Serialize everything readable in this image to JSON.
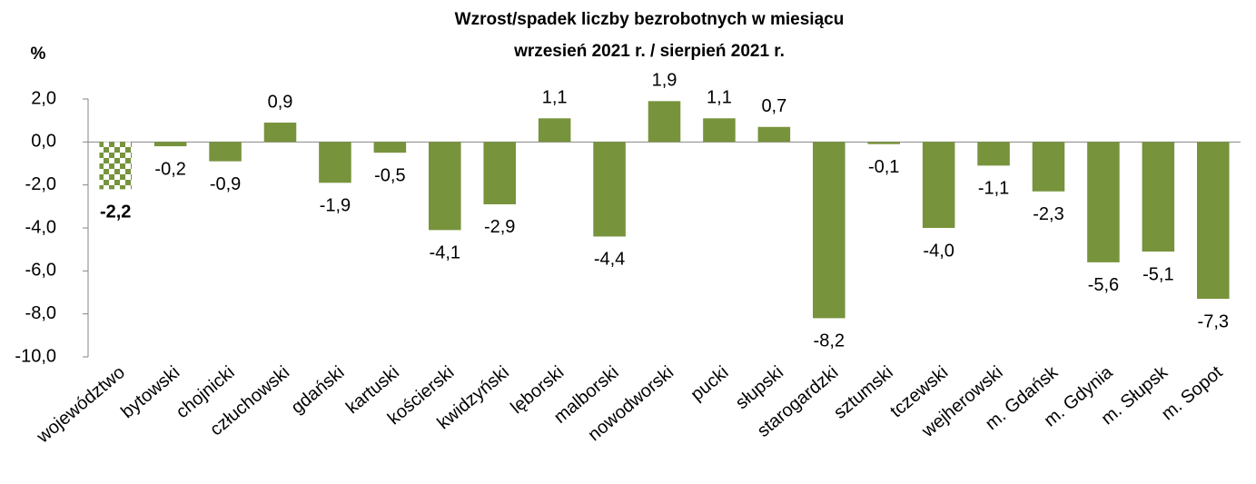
{
  "chart_data": {
    "type": "bar",
    "title": "Wzrost/spadek liczby bezrobotnych w miesiącu",
    "subtitle": "wrzesień 2021 r. / sierpień 2021 r.",
    "y_label": "%",
    "categories": [
      "województwo",
      "bytowski",
      "chojnicki",
      "człuchowski",
      "gdański",
      "kartuski",
      "kościerski",
      "kwidzyński",
      "lęborski",
      "malborski",
      "nowodworski",
      "pucki",
      "słupski",
      "starogardzki",
      "sztumski",
      "tczewski",
      "wejherowski",
      "m. Gdańsk",
      "m. Gdynia",
      "m. Słupsk",
      "m. Sopot"
    ],
    "values": [
      -2.2,
      -0.2,
      -0.9,
      0.9,
      -1.9,
      -0.5,
      -4.1,
      -2.9,
      1.1,
      -4.4,
      1.9,
      1.1,
      0.7,
      -8.2,
      -0.1,
      -4.0,
      -1.1,
      -2.3,
      -5.6,
      -5.1,
      -7.3
    ],
    "value_labels": [
      "-2,2",
      "-0,2",
      "-0,9",
      "0,9",
      "-1,9",
      "-0,5",
      "-4,1",
      "-2,9",
      "1,1",
      "-4,4",
      "1,9",
      "1,1",
      "0,7",
      "-8,2",
      "-0,1",
      "-4,0",
      "-1,1",
      "-2,3",
      "-5,6",
      "-5,1",
      "-7,3"
    ],
    "color": "#77933c",
    "ylim": [
      -10,
      2
    ],
    "yticks": [
      {
        "value": -10,
        "label": "-10,0"
      },
      {
        "value": -8,
        "label": "-8,0"
      },
      {
        "value": -6,
        "label": "-6,0"
      },
      {
        "value": -4,
        "label": "-4,0"
      },
      {
        "value": -2,
        "label": "-2,0"
      },
      {
        "value": 0,
        "label": "0,0"
      },
      {
        "value": 2,
        "label": "2,0"
      }
    ],
    "grid": false
  }
}
